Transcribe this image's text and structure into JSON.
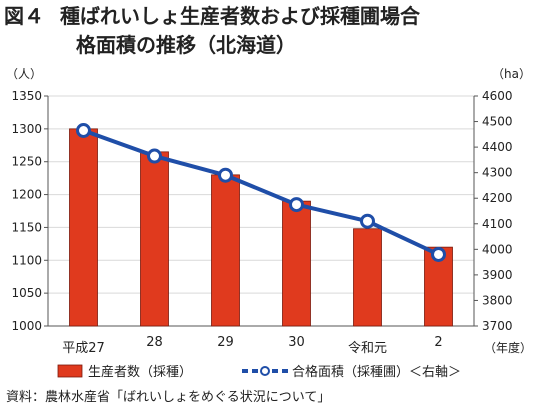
{
  "title": {
    "figure_label": "図４",
    "line1": "種ばれいしょ生産者数および採種圃場合",
    "line2": "格面積の推移（北海道）"
  },
  "source": "資料：農林水産省「ばれいしょをめぐる状況について」",
  "chart_data": {
    "type": "bar",
    "categories": [
      "平成27",
      "28",
      "29",
      "30",
      "令和元",
      "2"
    ],
    "x_unit_label": "（年度）",
    "y_left": {
      "unit_label": "（人）",
      "ylim": [
        1000,
        1350
      ],
      "ticks": [
        1000,
        1050,
        1100,
        1150,
        1200,
        1250,
        1300,
        1350
      ]
    },
    "y_right": {
      "unit_label": "（ha）",
      "ylim": [
        3700,
        4600
      ],
      "ticks": [
        3700,
        3800,
        3900,
        4000,
        4100,
        4200,
        4300,
        4400,
        4500,
        4600
      ]
    },
    "grid": true,
    "legend_position": "bottom",
    "series": [
      {
        "name": "生産者数（採種）",
        "type": "bar",
        "axis": "left",
        "color": "#e03a1e",
        "values": [
          1300,
          1265,
          1230,
          1190,
          1148,
          1120
        ]
      },
      {
        "name": "合格面積（採種圃）＜右軸＞",
        "type": "line",
        "axis": "right",
        "color": "#1f4ea8",
        "values": [
          4465,
          4365,
          4290,
          4175,
          4110,
          3980
        ]
      }
    ]
  }
}
